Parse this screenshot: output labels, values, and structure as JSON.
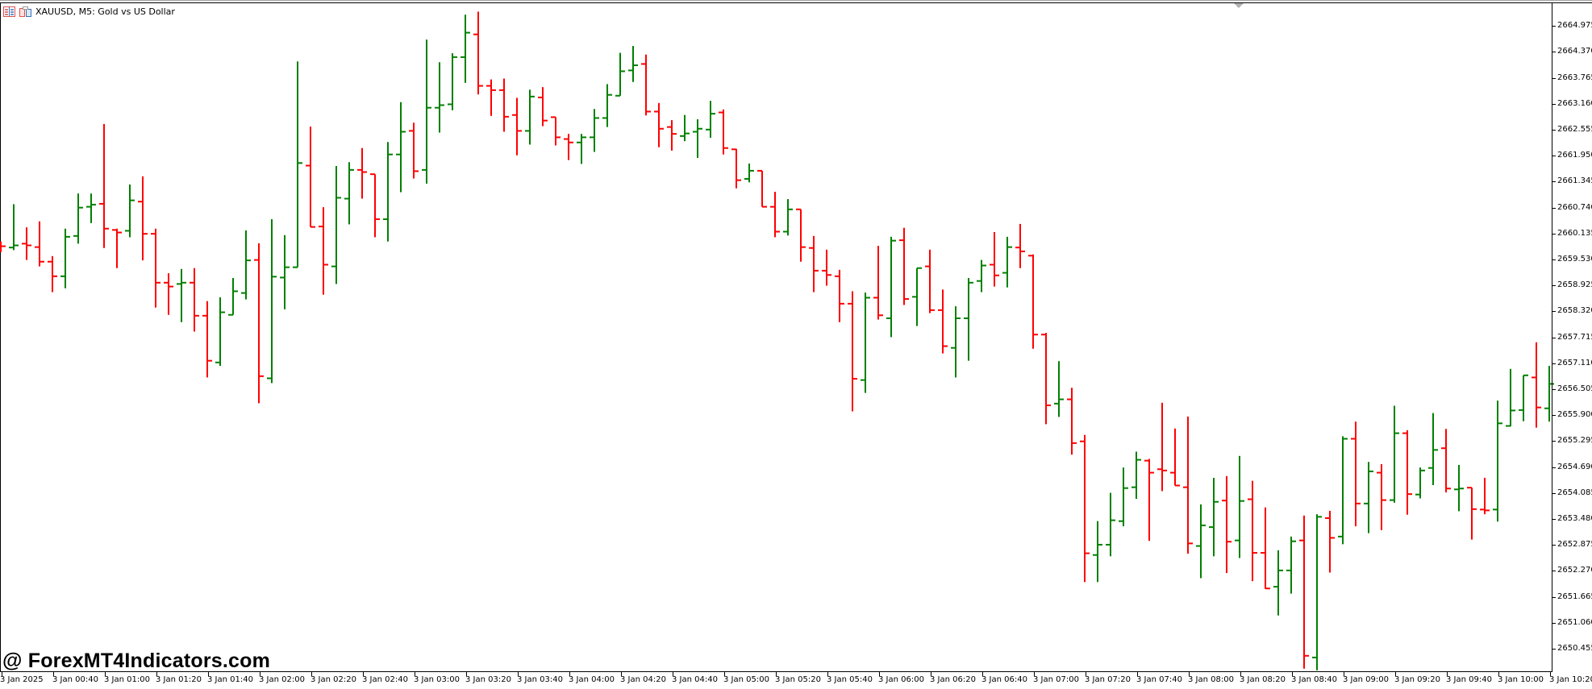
{
  "window": {
    "title": "XAUUSD, M5:  Gold vs US Dollar",
    "icons": [
      "bars-list-icon",
      "chart-template-icon"
    ],
    "watermark": "@ ForexMT4Indicators.com"
  },
  "colors": {
    "up": "#008000",
    "down": "#ff0000",
    "axis": "#000000",
    "background": "#ffffff"
  },
  "chart_data": {
    "type": "ohlc-bar",
    "symbol": "XAUUSD",
    "timeframe": "M5",
    "title": "XAUUSD, M5:  Gold vs US Dollar",
    "ylim": [
      2649.75,
      2665.6
    ],
    "grid": false,
    "y_ticks": [
      "2664.975",
      "2664.370",
      "2663.765",
      "2663.160",
      "2662.555",
      "2661.950",
      "2661.345",
      "2660.740",
      "2660.135",
      "2659.530",
      "2658.925",
      "2658.320",
      "2657.715",
      "2657.110",
      "2656.505",
      "2655.900",
      "2655.295",
      "2654.690",
      "2654.085",
      "2653.480",
      "2652.875",
      "2652.270",
      "2651.665",
      "2651.060",
      "2650.455"
    ],
    "x_ticks": [
      "3 Jan 2025",
      "3 Jan 00:40",
      "3 Jan 01:00",
      "3 Jan 01:20",
      "3 Jan 01:40",
      "3 Jan 02:00",
      "3 Jan 02:20",
      "3 Jan 02:40",
      "3 Jan 03:00",
      "3 Jan 03:20",
      "3 Jan 03:40",
      "3 Jan 04:00",
      "3 Jan 04:20",
      "3 Jan 04:40",
      "3 Jan 05:00",
      "3 Jan 05:20",
      "3 Jan 05:40",
      "3 Jan 06:00",
      "3 Jan 06:20",
      "3 Jan 06:40",
      "3 Jan 07:00",
      "3 Jan 07:20",
      "3 Jan 07:40",
      "3 Jan 08:00",
      "3 Jan 08:20",
      "3 Jan 08:40",
      "3 Jan 09:00",
      "3 Jan 09:20",
      "3 Jan 09:40",
      "3 Jan 10:00",
      "3 Jan 10:20"
    ],
    "columns": [
      "time",
      "open",
      "high",
      "low",
      "close"
    ],
    "bars": [
      [
        "00:20",
        2659.85,
        2659.95,
        2659.7,
        2659.84
      ],
      [
        "00:25",
        2659.81,
        2660.82,
        2659.75,
        2659.86
      ],
      [
        "00:30",
        2659.9,
        2660.28,
        2659.52,
        2659.86
      ],
      [
        "00:35",
        2659.82,
        2660.42,
        2659.37,
        2659.48
      ],
      [
        "00:40",
        2659.48,
        2659.61,
        2658.77,
        2659.14
      ],
      [
        "00:45",
        2659.14,
        2660.25,
        2658.86,
        2660.06
      ],
      [
        "00:50",
        2660.08,
        2661.07,
        2659.9,
        2660.74
      ],
      [
        "00:55",
        2660.76,
        2661.07,
        2660.38,
        2660.81
      ],
      [
        "01:00",
        2660.83,
        2662.69,
        2659.8,
        2660.25
      ],
      [
        "01:05",
        2660.22,
        2660.25,
        2659.33,
        2660.16
      ],
      [
        "01:10",
        2660.2,
        2661.28,
        2660.05,
        2660.91
      ],
      [
        "01:15",
        2660.88,
        2661.47,
        2659.51,
        2660.13
      ],
      [
        "01:20",
        2660.13,
        2660.25,
        2658.41,
        2658.99
      ],
      [
        "01:25",
        2658.99,
        2659.21,
        2658.24,
        2658.9
      ],
      [
        "01:30",
        2658.96,
        2659.31,
        2658.07,
        2658.99
      ],
      [
        "01:35",
        2658.99,
        2659.33,
        2657.85,
        2658.22
      ],
      [
        "01:40",
        2658.22,
        2658.56,
        2656.78,
        2657.17
      ],
      [
        "01:45",
        2657.13,
        2658.65,
        2657.05,
        2658.3
      ],
      [
        "01:50",
        2658.24,
        2659.1,
        2658.24,
        2658.79
      ],
      [
        "01:55",
        2658.75,
        2660.21,
        2658.6,
        2659.51
      ],
      [
        "02:00",
        2659.52,
        2659.91,
        2656.18,
        2656.81
      ],
      [
        "02:05",
        2656.76,
        2660.47,
        2656.65,
        2659.13
      ],
      [
        "02:10",
        2659.11,
        2660.1,
        2658.37,
        2659.35
      ],
      [
        "02:15",
        2659.35,
        2664.15,
        2659.35,
        2661.78
      ],
      [
        "02:20",
        2661.72,
        2662.63,
        2660.29,
        2660.29
      ],
      [
        "02:25",
        2660.3,
        2660.75,
        2658.71,
        2659.41
      ],
      [
        "02:30",
        2659.37,
        2661.71,
        2658.96,
        2660.97
      ],
      [
        "02:35",
        2660.95,
        2661.8,
        2660.35,
        2661.62
      ],
      [
        "02:40",
        2661.62,
        2662.13,
        2660.95,
        2661.57
      ],
      [
        "02:45",
        2661.52,
        2661.52,
        2660.05,
        2660.47
      ],
      [
        "02:50",
        2660.47,
        2662.27,
        2659.95,
        2661.98
      ],
      [
        "02:55",
        2661.98,
        2663.2,
        2661.1,
        2662.51
      ],
      [
        "03:00",
        2662.53,
        2662.72,
        2661.42,
        2661.59
      ],
      [
        "03:05",
        2661.62,
        2664.66,
        2661.3,
        2663.07
      ],
      [
        "03:10",
        2663.07,
        2664.13,
        2662.49,
        2663.13
      ],
      [
        "03:15",
        2663.15,
        2664.34,
        2663.01,
        2664.25
      ],
      [
        "03:20",
        2664.25,
        2665.24,
        2663.65,
        2664.82
      ],
      [
        "03:25",
        2664.78,
        2665.31,
        2663.38,
        2663.58
      ],
      [
        "03:30",
        2663.58,
        2663.73,
        2662.88,
        2663.48
      ],
      [
        "03:35",
        2663.48,
        2663.75,
        2662.51,
        2662.86
      ],
      [
        "03:40",
        2662.9,
        2663.3,
        2661.96,
        2662.53
      ],
      [
        "03:45",
        2662.53,
        2663.49,
        2662.21,
        2663.33
      ],
      [
        "03:50",
        2663.31,
        2663.55,
        2662.64,
        2662.77
      ],
      [
        "03:55",
        2662.85,
        2662.85,
        2662.19,
        2662.38
      ],
      [
        "04:00",
        2662.34,
        2662.46,
        2661.85,
        2662.26
      ],
      [
        "04:05",
        2662.26,
        2662.46,
        2661.76,
        2662.38
      ],
      [
        "04:10",
        2662.38,
        2663.04,
        2662.04,
        2662.83
      ],
      [
        "04:15",
        2662.83,
        2663.62,
        2662.62,
        2663.37
      ],
      [
        "04:20",
        2663.35,
        2664.35,
        2663.35,
        2663.92
      ],
      [
        "04:25",
        2663.94,
        2664.51,
        2663.67,
        2664.06
      ],
      [
        "04:30",
        2664.09,
        2664.31,
        2662.89,
        2662.98
      ],
      [
        "04:35",
        2662.98,
        2663.18,
        2662.15,
        2662.58
      ],
      [
        "04:40",
        2662.62,
        2662.78,
        2662.07,
        2662.46
      ],
      [
        "04:45",
        2662.41,
        2662.9,
        2662.29,
        2662.47
      ],
      [
        "04:50",
        2662.51,
        2662.8,
        2661.9,
        2662.58
      ],
      [
        "04:55",
        2662.56,
        2663.23,
        2662.37,
        2662.93
      ],
      [
        "05:00",
        2662.96,
        2663.03,
        2661.98,
        2662.13
      ],
      [
        "05:05",
        2662.1,
        2662.11,
        2661.19,
        2661.38
      ],
      [
        "05:10",
        2661.41,
        2661.77,
        2661.33,
        2661.6
      ],
      [
        "05:15",
        2661.6,
        2661.6,
        2660.76,
        2660.76
      ],
      [
        "05:20",
        2660.76,
        2661.11,
        2660.05,
        2660.18
      ],
      [
        "05:25",
        2660.18,
        2660.94,
        2660.09,
        2660.7
      ],
      [
        "05:30",
        2660.7,
        2660.7,
        2659.48,
        2659.82
      ],
      [
        "05:35",
        2659.8,
        2660.08,
        2658.77,
        2659.27
      ],
      [
        "05:40",
        2659.27,
        2659.76,
        2658.92,
        2659.17
      ],
      [
        "05:45",
        2659.14,
        2659.29,
        2658.07,
        2658.5
      ],
      [
        "05:50",
        2658.5,
        2658.79,
        2655.99,
        2656.75
      ],
      [
        "05:55",
        2656.72,
        2658.76,
        2656.42,
        2658.64
      ],
      [
        "06:00",
        2658.64,
        2659.85,
        2658.13,
        2658.23
      ],
      [
        "06:05",
        2658.16,
        2660.06,
        2657.72,
        2659.97
      ],
      [
        "06:10",
        2659.98,
        2660.27,
        2658.47,
        2658.61
      ],
      [
        "06:15",
        2658.66,
        2659.33,
        2657.98,
        2659.33
      ],
      [
        "06:20",
        2659.37,
        2659.76,
        2658.28,
        2658.35
      ],
      [
        "06:25",
        2658.35,
        2658.83,
        2657.34,
        2657.51
      ],
      [
        "06:30",
        2657.47,
        2658.44,
        2656.78,
        2658.16
      ],
      [
        "06:35",
        2658.16,
        2659.1,
        2657.17,
        2658.99
      ],
      [
        "06:40",
        2659.03,
        2659.52,
        2658.77,
        2659.39
      ],
      [
        "06:45",
        2659.41,
        2660.17,
        2658.9,
        2659.16
      ],
      [
        "06:50",
        2659.22,
        2660.06,
        2658.88,
        2659.82
      ],
      [
        "06:55",
        2659.81,
        2660.36,
        2659.33,
        2659.72
      ],
      [
        "07:00",
        2659.62,
        2659.65,
        2657.45,
        2657.78
      ],
      [
        "07:05",
        2657.78,
        2657.82,
        2655.69,
        2656.13
      ],
      [
        "07:10",
        2656.17,
        2657.16,
        2655.86,
        2656.27
      ],
      [
        "07:15",
        2656.27,
        2656.54,
        2654.98,
        2655.25
      ],
      [
        "07:20",
        2655.29,
        2655.44,
        2652.01,
        2652.68
      ],
      [
        "07:25",
        2652.64,
        2653.43,
        2652.01,
        2652.88
      ],
      [
        "07:30",
        2652.88,
        2654.09,
        2652.61,
        2653.45
      ],
      [
        "07:35",
        2653.43,
        2654.68,
        2653.31,
        2654.2
      ],
      [
        "07:40",
        2654.22,
        2655.05,
        2653.95,
        2654.86
      ],
      [
        "07:45",
        2654.84,
        2654.88,
        2652.97,
        2654.56
      ],
      [
        "07:50",
        2654.64,
        2656.19,
        2654.13,
        2654.61
      ],
      [
        "07:55",
        2654.56,
        2655.59,
        2654.26,
        2654.26
      ],
      [
        "08:00",
        2654.22,
        2655.87,
        2652.67,
        2652.91
      ],
      [
        "08:05",
        2652.85,
        2653.82,
        2652.1,
        2653.33
      ],
      [
        "08:10",
        2653.29,
        2654.44,
        2652.61,
        2653.88
      ],
      [
        "08:15",
        2653.91,
        2654.48,
        2652.22,
        2652.95
      ],
      [
        "08:20",
        2652.98,
        2654.95,
        2652.57,
        2653.9
      ],
      [
        "08:25",
        2653.94,
        2654.37,
        2652.03,
        2652.69
      ],
      [
        "08:30",
        2652.69,
        2653.75,
        2651.85,
        2651.86
      ],
      [
        "08:35",
        2651.9,
        2652.75,
        2651.23,
        2652.28
      ],
      [
        "08:40",
        2652.28,
        2653.07,
        2651.74,
        2652.96
      ],
      [
        "08:45",
        2652.98,
        2653.56,
        2649.99,
        2650.29
      ],
      [
        "08:50",
        2650.25,
        2653.59,
        2649.95,
        2653.53
      ],
      [
        "08:55",
        2653.5,
        2653.67,
        2652.23,
        2653.04
      ],
      [
        "09:00",
        2653.07,
        2655.41,
        2652.89,
        2655.35
      ],
      [
        "09:05",
        2655.35,
        2655.75,
        2653.31,
        2653.84
      ],
      [
        "09:10",
        2653.84,
        2654.81,
        2653.15,
        2654.59
      ],
      [
        "09:15",
        2654.56,
        2654.76,
        2653.22,
        2653.92
      ],
      [
        "09:20",
        2653.92,
        2656.12,
        2653.86,
        2655.48
      ],
      [
        "09:25",
        2655.48,
        2655.55,
        2653.58,
        2654.06
      ],
      [
        "09:30",
        2654.05,
        2654.68,
        2653.96,
        2654.61
      ],
      [
        "09:35",
        2654.67,
        2655.95,
        2654.27,
        2655.09
      ],
      [
        "09:40",
        2655.13,
        2655.58,
        2654.1,
        2654.19
      ],
      [
        "09:45",
        2654.17,
        2654.74,
        2653.66,
        2654.19
      ],
      [
        "09:50",
        2654.21,
        2654.21,
        2653.0,
        2653.71
      ],
      [
        "09:55",
        2653.7,
        2654.44,
        2653.59,
        2653.68
      ],
      [
        "10:00",
        2653.7,
        2656.24,
        2653.42,
        2655.71
      ],
      [
        "10:05",
        2655.65,
        2656.98,
        2655.64,
        2656.01
      ],
      [
        "10:10",
        2656.02,
        2656.83,
        2655.76,
        2656.83
      ],
      [
        "10:15",
        2656.78,
        2657.6,
        2655.61,
        2656.08
      ],
      [
        "10:20",
        2656.06,
        2657.05,
        2655.75,
        2656.63
      ]
    ]
  }
}
